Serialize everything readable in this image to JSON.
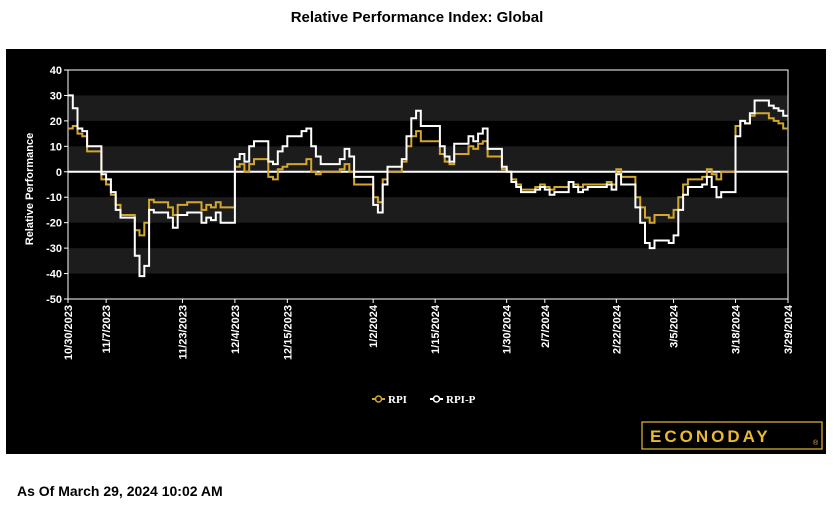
{
  "header": {
    "title": "Relative Performance Index: Global"
  },
  "footer": {
    "as_of": "As Of March 29, 2024 10:02 AM"
  },
  "brand": {
    "name": "ECONODAY",
    "mark": "®",
    "color": "#e8b931"
  },
  "colors": {
    "rpi": "#d4a72c",
    "rpi_p": "#ffffff",
    "zero_line": "#ffffff",
    "band": "#1c1c1c",
    "background": "#000000"
  },
  "chart_data": {
    "type": "line",
    "title": "Relative Performance Index: Global",
    "xlabel": "",
    "ylabel": "Relative Performance",
    "ylim": [
      -50,
      40
    ],
    "yticks": [
      40,
      30,
      20,
      10,
      0,
      -10,
      -20,
      -30,
      -40,
      -50
    ],
    "xlim": [
      "2023-10-30",
      "2024-03-29"
    ],
    "xticks": [
      "10/30/2023",
      "11/7/2023",
      "11/23/2023",
      "12/4/2023",
      "12/15/2023",
      "1/2/2024",
      "1/15/2024",
      "1/30/2024",
      "2/7/2024",
      "2/22/2024",
      "3/5/2024",
      "3/18/2024",
      "3/29/2024"
    ],
    "grid": "alternating horizontal bands",
    "legend": "bottom-center",
    "series": [
      {
        "name": "RPI",
        "color": "#d4a72c",
        "points": [
          [
            "2023-10-30",
            17
          ],
          [
            "2023-10-31",
            18
          ],
          [
            "2023-11-01",
            15
          ],
          [
            "2023-11-02",
            14
          ],
          [
            "2023-11-03",
            8
          ],
          [
            "2023-11-06",
            -3
          ],
          [
            "2023-11-07",
            -5
          ],
          [
            "2023-11-08",
            -9
          ],
          [
            "2023-11-09",
            -13
          ],
          [
            "2023-11-10",
            -17
          ],
          [
            "2023-11-13",
            -23
          ],
          [
            "2023-11-14",
            -25
          ],
          [
            "2023-11-15",
            -20
          ],
          [
            "2023-11-16",
            -11
          ],
          [
            "2023-11-17",
            -12
          ],
          [
            "2023-11-20",
            -14
          ],
          [
            "2023-11-21",
            -17
          ],
          [
            "2023-11-22",
            -13
          ],
          [
            "2023-11-24",
            -12
          ],
          [
            "2023-11-27",
            -15
          ],
          [
            "2023-11-28",
            -13
          ],
          [
            "2023-11-29",
            -14
          ],
          [
            "2023-11-30",
            -12
          ],
          [
            "2023-12-01",
            -14
          ],
          [
            "2023-12-04",
            2
          ],
          [
            "2023-12-05",
            3
          ],
          [
            "2023-12-06",
            0
          ],
          [
            "2023-12-07",
            3
          ],
          [
            "2023-12-08",
            5
          ],
          [
            "2023-12-11",
            -2
          ],
          [
            "2023-12-12",
            -3
          ],
          [
            "2023-12-13",
            1
          ],
          [
            "2023-12-14",
            2
          ],
          [
            "2023-12-15",
            3
          ],
          [
            "2023-12-18",
            3
          ],
          [
            "2023-12-19",
            5
          ],
          [
            "2023-12-20",
            0
          ],
          [
            "2023-12-21",
            -1
          ],
          [
            "2023-12-22",
            0
          ],
          [
            "2023-12-26",
            1
          ],
          [
            "2023-12-27",
            3
          ],
          [
            "2023-12-28",
            0
          ],
          [
            "2023-12-29",
            -5
          ],
          [
            "2024-01-02",
            -10
          ],
          [
            "2024-01-03",
            -12
          ],
          [
            "2024-01-04",
            -3
          ],
          [
            "2024-01-05",
            0
          ],
          [
            "2024-01-08",
            4
          ],
          [
            "2024-01-09",
            10
          ],
          [
            "2024-01-10",
            14
          ],
          [
            "2024-01-11",
            16
          ],
          [
            "2024-01-12",
            12
          ],
          [
            "2024-01-16",
            7
          ],
          [
            "2024-01-17",
            4
          ],
          [
            "2024-01-18",
            3
          ],
          [
            "2024-01-19",
            7
          ],
          [
            "2024-01-22",
            10
          ],
          [
            "2024-01-23",
            9
          ],
          [
            "2024-01-24",
            11
          ],
          [
            "2024-01-25",
            12
          ],
          [
            "2024-01-26",
            6
          ],
          [
            "2024-01-29",
            1
          ],
          [
            "2024-01-30",
            0
          ],
          [
            "2024-01-31",
            -3
          ],
          [
            "2024-02-01",
            -5
          ],
          [
            "2024-02-02",
            -7
          ],
          [
            "2024-02-05",
            -6
          ],
          [
            "2024-02-06",
            -5
          ],
          [
            "2024-02-07",
            -6
          ],
          [
            "2024-02-08",
            -7
          ],
          [
            "2024-02-09",
            -6
          ],
          [
            "2024-02-12",
            -4
          ],
          [
            "2024-02-13",
            -5
          ],
          [
            "2024-02-14",
            -6
          ],
          [
            "2024-02-15",
            -5
          ],
          [
            "2024-02-16",
            -5
          ],
          [
            "2024-02-20",
            -4
          ],
          [
            "2024-02-21",
            -5
          ],
          [
            "2024-02-22",
            1
          ],
          [
            "2024-02-23",
            -2
          ],
          [
            "2024-02-26",
            -10
          ],
          [
            "2024-02-27",
            -14
          ],
          [
            "2024-02-28",
            -18
          ],
          [
            "2024-02-29",
            -20
          ],
          [
            "2024-03-01",
            -17
          ],
          [
            "2024-03-04",
            -18
          ],
          [
            "2024-03-05",
            -15
          ],
          [
            "2024-03-06",
            -10
          ],
          [
            "2024-03-07",
            -5
          ],
          [
            "2024-03-08",
            -3
          ],
          [
            "2024-03-11",
            -2
          ],
          [
            "2024-03-12",
            1
          ],
          [
            "2024-03-13",
            -1
          ],
          [
            "2024-03-14",
            -3
          ],
          [
            "2024-03-15",
            0
          ],
          [
            "2024-03-18",
            18
          ],
          [
            "2024-03-19",
            20
          ],
          [
            "2024-03-20",
            19
          ],
          [
            "2024-03-21",
            22
          ],
          [
            "2024-03-22",
            23
          ],
          [
            "2024-03-25",
            21
          ],
          [
            "2024-03-26",
            20
          ],
          [
            "2024-03-27",
            19
          ],
          [
            "2024-03-28",
            17
          ],
          [
            "2024-03-29",
            17
          ]
        ]
      },
      {
        "name": "RPI-P",
        "color": "#ffffff",
        "points": [
          [
            "2023-10-30",
            30
          ],
          [
            "2023-10-31",
            25
          ],
          [
            "2023-11-01",
            17
          ],
          [
            "2023-11-02",
            16
          ],
          [
            "2023-11-03",
            10
          ],
          [
            "2023-11-06",
            -1
          ],
          [
            "2023-11-07",
            -3
          ],
          [
            "2023-11-08",
            -8
          ],
          [
            "2023-11-09",
            -15
          ],
          [
            "2023-11-10",
            -18
          ],
          [
            "2023-11-13",
            -33
          ],
          [
            "2023-11-14",
            -41
          ],
          [
            "2023-11-15",
            -37
          ],
          [
            "2023-11-16",
            -15
          ],
          [
            "2023-11-17",
            -16
          ],
          [
            "2023-11-20",
            -18
          ],
          [
            "2023-11-21",
            -22
          ],
          [
            "2023-11-22",
            -17
          ],
          [
            "2023-11-24",
            -16
          ],
          [
            "2023-11-27",
            -20
          ],
          [
            "2023-11-28",
            -18
          ],
          [
            "2023-11-29",
            -19
          ],
          [
            "2023-11-30",
            -16
          ],
          [
            "2023-12-01",
            -20
          ],
          [
            "2023-12-04",
            5
          ],
          [
            "2023-12-05",
            7
          ],
          [
            "2023-12-06",
            4
          ],
          [
            "2023-12-07",
            10
          ],
          [
            "2023-12-08",
            12
          ],
          [
            "2023-12-11",
            4
          ],
          [
            "2023-12-12",
            3
          ],
          [
            "2023-12-13",
            8
          ],
          [
            "2023-12-14",
            10
          ],
          [
            "2023-12-15",
            14
          ],
          [
            "2023-12-18",
            16
          ],
          [
            "2023-12-19",
            17
          ],
          [
            "2023-12-20",
            10
          ],
          [
            "2023-12-21",
            6
          ],
          [
            "2023-12-22",
            3
          ],
          [
            "2023-12-26",
            5
          ],
          [
            "2023-12-27",
            9
          ],
          [
            "2023-12-28",
            6
          ],
          [
            "2023-12-29",
            -2
          ],
          [
            "2024-01-02",
            -13
          ],
          [
            "2024-01-03",
            -16
          ],
          [
            "2024-01-04",
            -5
          ],
          [
            "2024-01-05",
            2
          ],
          [
            "2024-01-08",
            5
          ],
          [
            "2024-01-09",
            14
          ],
          [
            "2024-01-10",
            21
          ],
          [
            "2024-01-11",
            24
          ],
          [
            "2024-01-12",
            18
          ],
          [
            "2024-01-16",
            10
          ],
          [
            "2024-01-17",
            6
          ],
          [
            "2024-01-18",
            4
          ],
          [
            "2024-01-19",
            11
          ],
          [
            "2024-01-22",
            14
          ],
          [
            "2024-01-23",
            12
          ],
          [
            "2024-01-24",
            15
          ],
          [
            "2024-01-25",
            17
          ],
          [
            "2024-01-26",
            9
          ],
          [
            "2024-01-29",
            2
          ],
          [
            "2024-01-30",
            0
          ],
          [
            "2024-01-31",
            -4
          ],
          [
            "2024-02-01",
            -6
          ],
          [
            "2024-02-02",
            -8
          ],
          [
            "2024-02-05",
            -7
          ],
          [
            "2024-02-06",
            -6
          ],
          [
            "2024-02-07",
            -7
          ],
          [
            "2024-02-08",
            -9
          ],
          [
            "2024-02-09",
            -8
          ],
          [
            "2024-02-12",
            -4
          ],
          [
            "2024-02-13",
            -6
          ],
          [
            "2024-02-14",
            -8
          ],
          [
            "2024-02-15",
            -7
          ],
          [
            "2024-02-16",
            -6
          ],
          [
            "2024-02-20",
            -5
          ],
          [
            "2024-02-21",
            -7
          ],
          [
            "2024-02-22",
            -1
          ],
          [
            "2024-02-23",
            -5
          ],
          [
            "2024-02-26",
            -14
          ],
          [
            "2024-02-27",
            -20
          ],
          [
            "2024-02-28",
            -28
          ],
          [
            "2024-02-29",
            -30
          ],
          [
            "2024-03-01",
            -27
          ],
          [
            "2024-03-04",
            -28
          ],
          [
            "2024-03-05",
            -25
          ],
          [
            "2024-03-06",
            -15
          ],
          [
            "2024-03-07",
            -9
          ],
          [
            "2024-03-08",
            -6
          ],
          [
            "2024-03-11",
            -5
          ],
          [
            "2024-03-12",
            -2
          ],
          [
            "2024-03-13",
            -6
          ],
          [
            "2024-03-14",
            -10
          ],
          [
            "2024-03-15",
            -8
          ],
          [
            "2024-03-18",
            14
          ],
          [
            "2024-03-19",
            20
          ],
          [
            "2024-03-20",
            19
          ],
          [
            "2024-03-21",
            23
          ],
          [
            "2024-03-22",
            28
          ],
          [
            "2024-03-25",
            26
          ],
          [
            "2024-03-26",
            25
          ],
          [
            "2024-03-27",
            24
          ],
          [
            "2024-03-28",
            22
          ],
          [
            "2024-03-29",
            22
          ]
        ]
      }
    ]
  }
}
